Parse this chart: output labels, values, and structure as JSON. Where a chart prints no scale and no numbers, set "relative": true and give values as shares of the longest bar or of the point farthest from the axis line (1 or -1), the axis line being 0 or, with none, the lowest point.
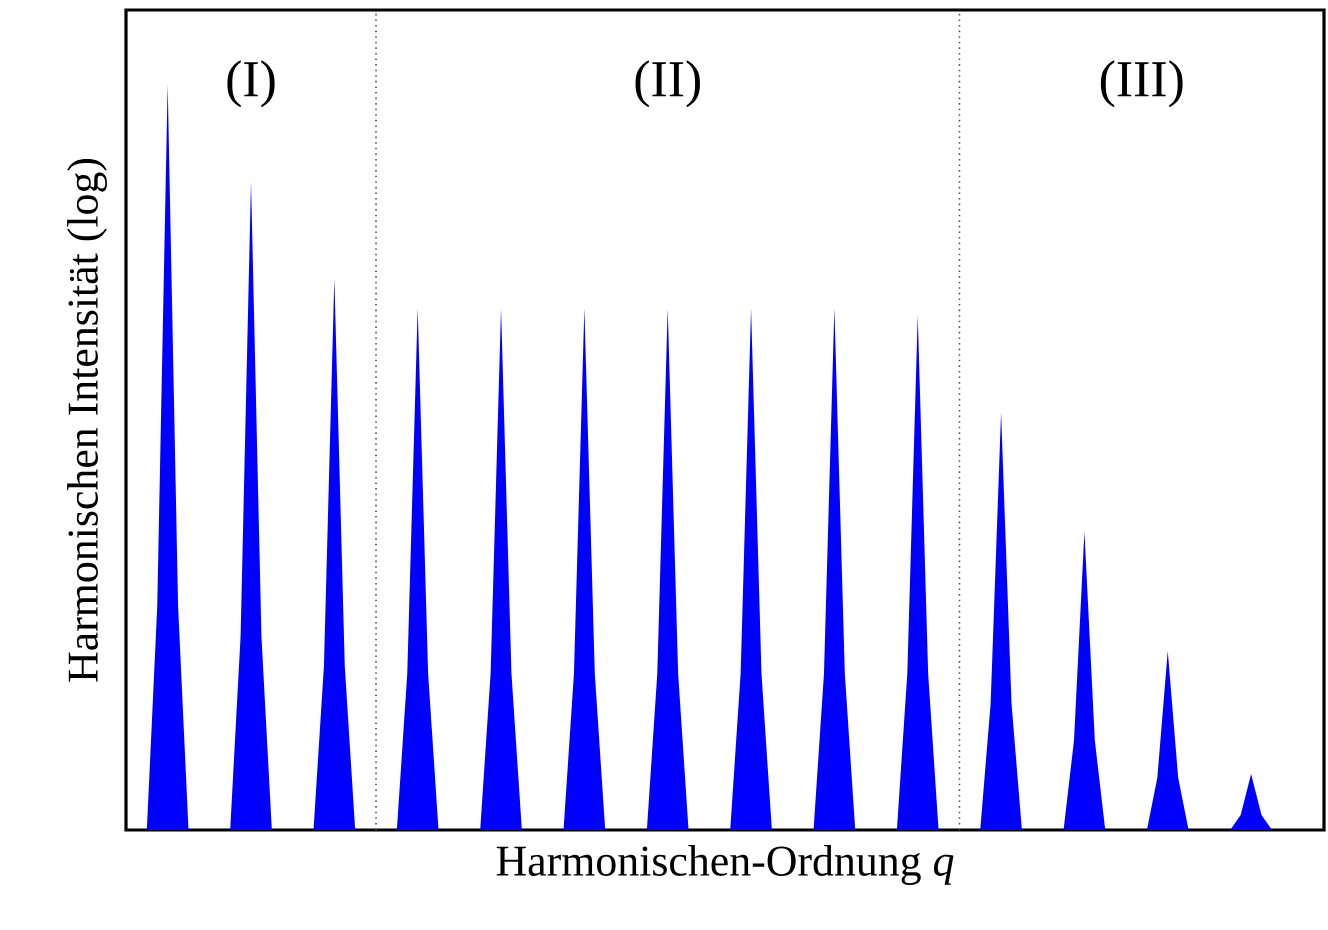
{
  "chart_data": {
    "type": "area",
    "relative": true,
    "xlabel": "Harmonischen-Ordnung *q*",
    "ylabel": "Harmonischen Intensität (log)",
    "tick_labels": false,
    "categories": [
      null,
      null,
      null,
      null,
      null,
      null,
      null,
      null,
      null,
      null,
      null,
      null,
      null,
      null,
      null,
      null,
      null,
      null,
      null,
      null,
      null,
      null,
      null,
      null,
      null,
      null,
      null,
      null,
      null,
      null,
      null,
      null,
      null,
      null,
      null,
      null,
      null,
      null,
      null,
      null,
      null,
      null,
      null,
      null,
      null,
      null,
      null,
      null,
      null,
      null,
      null,
      null,
      null,
      null,
      null,
      null,
      null,
      null,
      null,
      null,
      null,
      null,
      null,
      null,
      null,
      null,
      null,
      null,
      null,
      null,
      null,
      null,
      null,
      null,
      null,
      null,
      null,
      null,
      null,
      null,
      null,
      null,
      null,
      null,
      null,
      null,
      null,
      null,
      null,
      null,
      null,
      null,
      null,
      null,
      null,
      null,
      null,
      null,
      null,
      null,
      null,
      null,
      null,
      null,
      null,
      null,
      null,
      null,
      null,
      null,
      null,
      null,
      null,
      null,
      null,
      null
    ],
    "series": [
      {
        "color": "#0000ff",
        "values": [
          0,
          0,
          0,
          0.3,
          1,
          0.3,
          0,
          0,
          0,
          0,
          0,
          0.26,
          0.87,
          0.26,
          0,
          0,
          0,
          0,
          0,
          0.22,
          0.74,
          0.22,
          0,
          0,
          0,
          0,
          0,
          0.21,
          0.7,
          0.21,
          0,
          0,
          0,
          0,
          0,
          0.21,
          0.7,
          0.21,
          0,
          0,
          0,
          0,
          0,
          0.21,
          0.7,
          0.21,
          0,
          0,
          0,
          0,
          0,
          0.21,
          0.7,
          0.21,
          0,
          0,
          0,
          0,
          0,
          0.21,
          0.7,
          0.21,
          0,
          0,
          0,
          0,
          0,
          0.21,
          0.7,
          0.21,
          0,
          0,
          0,
          0,
          0,
          0.21,
          0.69,
          0.21,
          0,
          0,
          0,
          0,
          0,
          0.17,
          0.56,
          0.17,
          0,
          0,
          0,
          0,
          0,
          0.12,
          0.4,
          0.12,
          0,
          0,
          0,
          0,
          0,
          0.07,
          0.24,
          0.07,
          0,
          0,
          0,
          0,
          0,
          0.02,
          0.075,
          0.02,
          0,
          0,
          0,
          0,
          0,
          0
        ]
      }
    ],
    "annotations": [
      "(I)",
      "(II)",
      "(III)"
    ]
  }
}
